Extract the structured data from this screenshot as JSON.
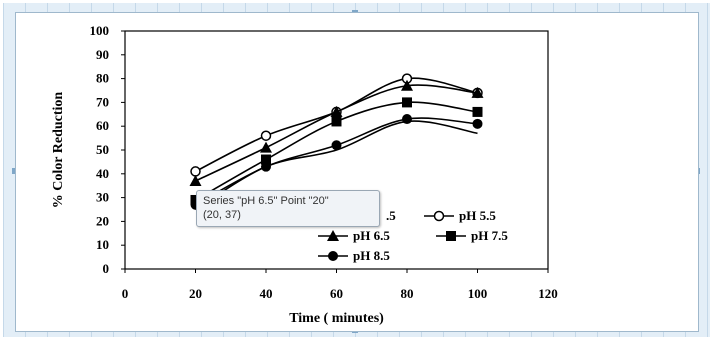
{
  "chart_data": {
    "type": "line",
    "xlabel": "Time ( minutes)",
    "ylabel": "% Color Reduction",
    "xlim": [
      0,
      120
    ],
    "ylim": [
      0,
      100
    ],
    "x_ticks": [
      "0",
      "20",
      "40",
      "60",
      "80",
      "100",
      "120"
    ],
    "y_ticks": [
      "0",
      "10",
      "20",
      "30",
      "40",
      "50",
      "60",
      "70",
      "80",
      "90",
      "100"
    ],
    "x": [
      20,
      40,
      60,
      80,
      100
    ],
    "series": [
      {
        "name": "pH 5.5",
        "marker": "circle-open",
        "values": [
          41,
          56,
          66,
          80,
          74
        ]
      },
      {
        "name": "pH 6.5",
        "marker": "triangle",
        "values": [
          37,
          51,
          66,
          77,
          74
        ]
      },
      {
        "name": "pH 7.5",
        "marker": "square",
        "values": [
          29,
          46,
          62,
          70,
          66
        ]
      },
      {
        "name": "pH 8.5",
        "marker": "circle",
        "values": [
          27,
          43,
          52,
          63,
          61
        ]
      },
      {
        "name": "",
        "marker": "line",
        "values": [
          25,
          43,
          50,
          62,
          57
        ]
      }
    ],
    "legend": [
      {
        "name": "pH 5.5",
        "marker": "circle-open"
      },
      {
        "name": "pH 6.5",
        "marker": "triangle"
      },
      {
        "name": "pH 7.5",
        "marker": "square"
      },
      {
        "name": "pH 8.5",
        "marker": "circle"
      }
    ],
    "legend_partial_text": ".5"
  },
  "tooltip": {
    "line1": "Series \"pH 6.5\" Point \"20\"",
    "line2": "(20, 37)"
  },
  "colors": {
    "frame": "#e3eef7",
    "axis": "#000000",
    "series": "#000000"
  }
}
